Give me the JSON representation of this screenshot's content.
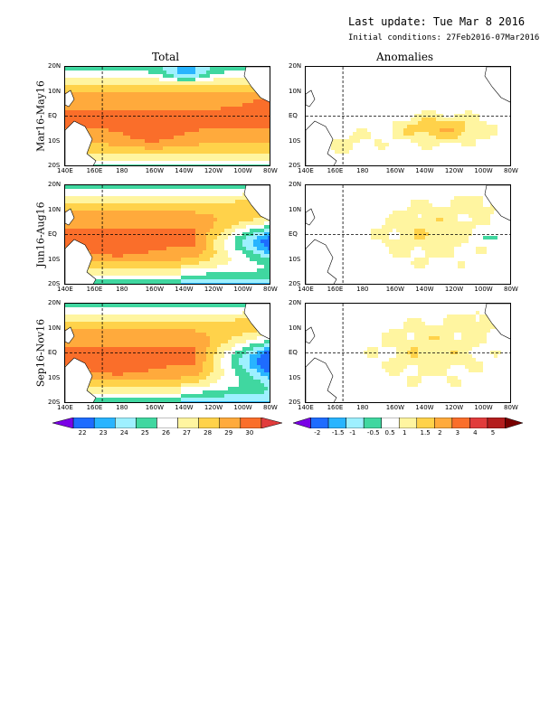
{
  "header": {
    "update": "Last update: Tue Mar 8 2016",
    "initial": "Initial conditions: 27Feb2016-07Mar2016"
  },
  "columns": [
    "Total",
    "Anomalies"
  ],
  "rows": [
    "Mar16-May16",
    "Jun16-Aug16",
    "Sep16-Nov16"
  ],
  "lat_ticks": [
    "20N",
    "10N",
    "EQ",
    "10S",
    "20S"
  ],
  "lon_ticks": [
    "140E",
    "160E",
    "180",
    "160W",
    "140W",
    "120W",
    "100W",
    "80W"
  ],
  "total_colorbar": {
    "labels": [
      "22",
      "23",
      "24",
      "25",
      "26",
      "27",
      "28",
      "29",
      "30"
    ],
    "colors": [
      "#7a00e6",
      "#1e6cff",
      "#28b4ff",
      "#9ef0ff",
      "#40d7a0",
      "#ffffff",
      "#fff5a0",
      "#ffd24a",
      "#ffaa3c",
      "#fa6e2a",
      "#e13c3c"
    ]
  },
  "anom_colorbar": {
    "labels": [
      "-2",
      "-1.5",
      "-1",
      "-0.5",
      "0.5",
      "1",
      "1.5",
      "2",
      "3",
      "4",
      "5"
    ],
    "colors": [
      "#7a00e6",
      "#1e6cff",
      "#28b4ff",
      "#9ef0ff",
      "#40d7a0",
      "#ffffff",
      "#fff5a0",
      "#ffd24a",
      "#ffaa3c",
      "#fa6e2a",
      "#e13c3c",
      "#b41e1e",
      "#780000"
    ]
  }
}
